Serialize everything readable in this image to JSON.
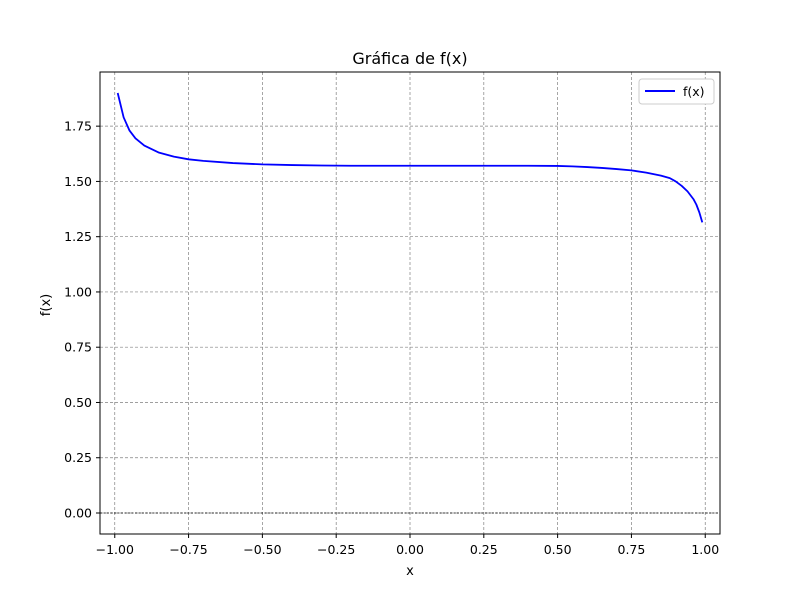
{
  "chart_data": {
    "type": "line",
    "title": "Gráfica de f(x)",
    "xlabel": "x",
    "ylabel": "f(x)",
    "xlim": [
      -1.05,
      1.05
    ],
    "ylim": [
      -0.095,
      1.995
    ],
    "xticks": [
      -1.0,
      -0.75,
      -0.5,
      -0.25,
      0.0,
      0.25,
      0.5,
      0.75,
      1.0
    ],
    "xtick_labels": [
      "−1.00",
      "−0.75",
      "−0.50",
      "−0.25",
      "0.00",
      "0.25",
      "0.50",
      "0.75",
      "1.00"
    ],
    "yticks": [
      0.0,
      0.25,
      0.5,
      0.75,
      1.0,
      1.25,
      1.5,
      1.75
    ],
    "ytick_labels": [
      "0.00",
      "0.25",
      "0.50",
      "0.75",
      "1.00",
      "1.25",
      "1.50",
      "1.75"
    ],
    "grid": true,
    "hline_y": 0,
    "hline_color": "#000000",
    "legend": {
      "placement": "top-right",
      "entries": [
        "f(x)"
      ]
    },
    "series": [
      {
        "name": "f(x)",
        "color": "#0000ff",
        "x": [
          -0.99,
          -0.97,
          -0.95,
          -0.93,
          -0.9,
          -0.85,
          -0.8,
          -0.75,
          -0.7,
          -0.6,
          -0.5,
          -0.4,
          -0.3,
          -0.2,
          -0.1,
          0.0,
          0.1,
          0.2,
          0.3,
          0.4,
          0.5,
          0.55,
          0.6,
          0.65,
          0.7,
          0.75,
          0.8,
          0.85,
          0.88,
          0.9,
          0.92,
          0.94,
          0.96,
          0.97,
          0.98,
          0.99
        ],
        "y": [
          1.9,
          1.79,
          1.73,
          1.695,
          1.662,
          1.63,
          1.612,
          1.6,
          1.593,
          1.583,
          1.577,
          1.574,
          1.572,
          1.571,
          1.571,
          1.571,
          1.571,
          1.571,
          1.571,
          1.571,
          1.57,
          1.568,
          1.565,
          1.561,
          1.556,
          1.55,
          1.54,
          1.526,
          1.515,
          1.5,
          1.48,
          1.455,
          1.42,
          1.395,
          1.36,
          1.315
        ]
      }
    ]
  }
}
